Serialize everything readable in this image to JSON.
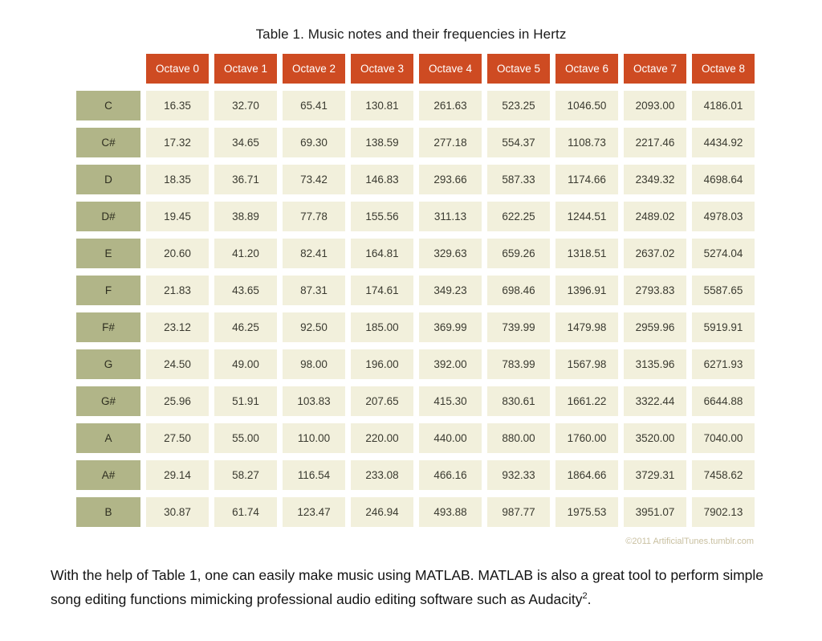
{
  "colors": {
    "header_orange": "#CE4B22",
    "note_sage": "#B1B588",
    "cell_cream": "#F2F0DC",
    "credit_tan": "#C9C0A1",
    "page_background": "#FFFFFF"
  },
  "chart_data": {
    "type": "table",
    "title": "Table 1. Music notes and their frequencies in Hertz",
    "columns": [
      "Octave 0",
      "Octave 1",
      "Octave 2",
      "Octave 3",
      "Octave 4",
      "Octave 5",
      "Octave 6",
      "Octave 7",
      "Octave 8"
    ],
    "row_labels": [
      "C",
      "C#",
      "D",
      "D#",
      "E",
      "F",
      "F#",
      "G",
      "G#",
      "A",
      "A#",
      "B"
    ],
    "rows": [
      [
        "16.35",
        "32.70",
        "65.41",
        "130.81",
        "261.63",
        "523.25",
        "1046.50",
        "2093.00",
        "4186.01"
      ],
      [
        "17.32",
        "34.65",
        "69.30",
        "138.59",
        "277.18",
        "554.37",
        "1108.73",
        "2217.46",
        "4434.92"
      ],
      [
        "18.35",
        "36.71",
        "73.42",
        "146.83",
        "293.66",
        "587.33",
        "1174.66",
        "2349.32",
        "4698.64"
      ],
      [
        "19.45",
        "38.89",
        "77.78",
        "155.56",
        "311.13",
        "622.25",
        "1244.51",
        "2489.02",
        "4978.03"
      ],
      [
        "20.60",
        "41.20",
        "82.41",
        "164.81",
        "329.63",
        "659.26",
        "1318.51",
        "2637.02",
        "5274.04"
      ],
      [
        "21.83",
        "43.65",
        "87.31",
        "174.61",
        "349.23",
        "698.46",
        "1396.91",
        "2793.83",
        "5587.65"
      ],
      [
        "23.12",
        "46.25",
        "92.50",
        "185.00",
        "369.99",
        "739.99",
        "1479.98",
        "2959.96",
        "5919.91"
      ],
      [
        "24.50",
        "49.00",
        "98.00",
        "196.00",
        "392.00",
        "783.99",
        "1567.98",
        "3135.96",
        "6271.93"
      ],
      [
        "25.96",
        "51.91",
        "103.83",
        "207.65",
        "415.30",
        "830.61",
        "1661.22",
        "3322.44",
        "6644.88"
      ],
      [
        "27.50",
        "55.00",
        "110.00",
        "220.00",
        "440.00",
        "880.00",
        "1760.00",
        "3520.00",
        "7040.00"
      ],
      [
        "29.14",
        "58.27",
        "116.54",
        "233.08",
        "466.16",
        "932.33",
        "1864.66",
        "3729.31",
        "7458.62"
      ],
      [
        "30.87",
        "61.74",
        "123.47",
        "246.94",
        "493.88",
        "987.77",
        "1975.53",
        "3951.07",
        "7902.13"
      ]
    ]
  },
  "credit": "©2011 ArtificialTunes.tumblr.com",
  "paragraph": {
    "text": "With the help of Table 1, one can easily make music using MATLAB. MATLAB is also a great tool to perform simple song editing functions mimicking professional audio editing software such as Audacity",
    "footnote_marker": "2",
    "after": "."
  }
}
